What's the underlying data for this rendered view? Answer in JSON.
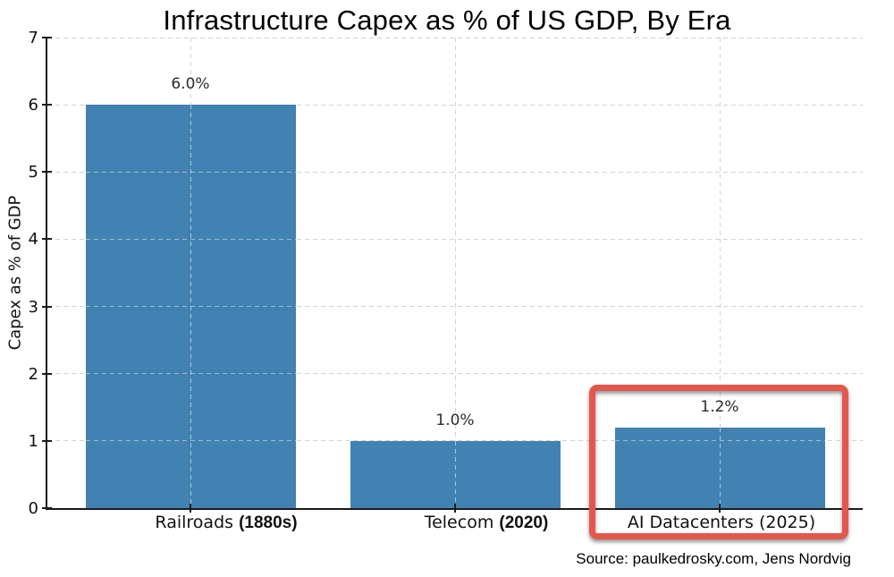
{
  "chart_data": {
    "type": "bar",
    "title": "Infrastructure Capex as % of US GDP, By Era",
    "xlabel": "",
    "ylabel": "Capex as % of GDP",
    "ylim": [
      0,
      7
    ],
    "yticks": [
      0,
      1,
      2,
      3,
      4,
      5,
      6,
      7
    ],
    "grid": true,
    "grid_style": "dashed",
    "categories": [
      {
        "name": "Railroads",
        "year": "(1880s)"
      },
      {
        "name": "Telecom",
        "year": "(2020)"
      },
      {
        "name": "AI Datacenters",
        "year": "(2025)"
      }
    ],
    "values": [
      6.0,
      1.0,
      1.2
    ],
    "value_labels": [
      "6.0%",
      "1.0%",
      "1.2%"
    ],
    "bar_color": "#4282b2",
    "axis_color": "#1a1a1a",
    "gridline_color": "#d2d2d2",
    "highlight": {
      "index": 2,
      "color": "#e4574d",
      "shape": "rounded-rect"
    }
  },
  "source": {
    "text": "Source: paulkedrosky.com, Jens Nordvig"
  }
}
